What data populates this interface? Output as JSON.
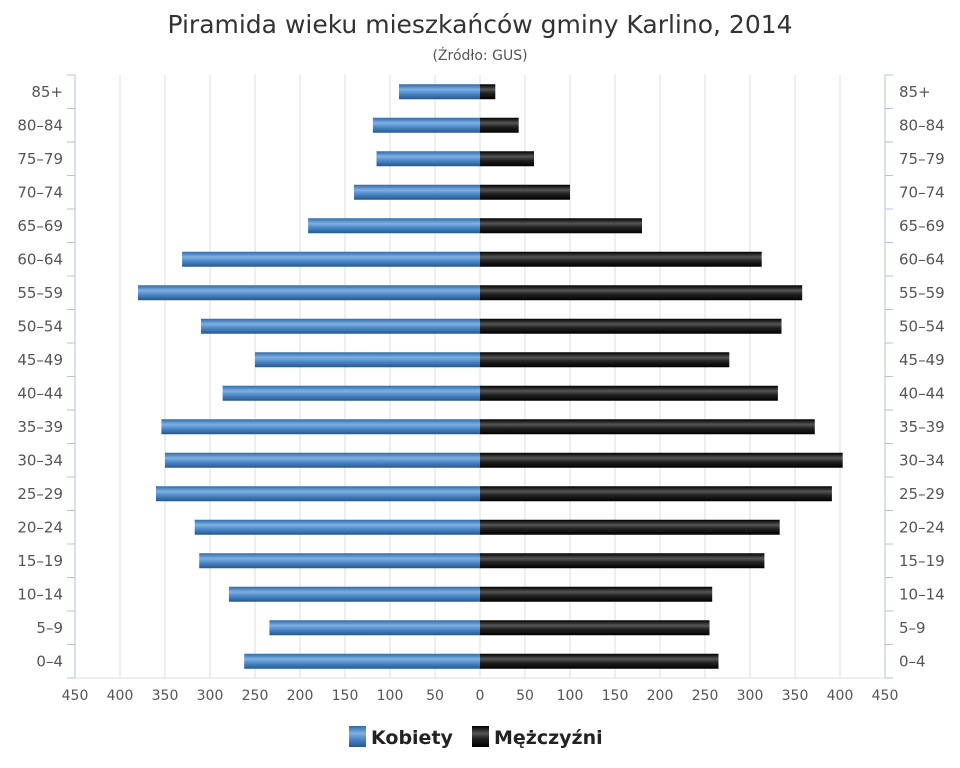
{
  "colors": {
    "kobiety": "#4a86c5",
    "mezczyzni": "#1a1a1a",
    "grid": "#dddddd",
    "axis": "#b0c4d8"
  },
  "chart_data": {
    "type": "bar",
    "orientation": "horizontal",
    "title": "Piramida wieku mieszkańców gminy Karlino, 2014",
    "subtitle": "(Źródło: GUS)",
    "categories": [
      "85+",
      "80–84",
      "75–79",
      "70–74",
      "65–69",
      "60–64",
      "55–59",
      "50–54",
      "45–49",
      "40–44",
      "35–39",
      "30–34",
      "25–29",
      "20–24",
      "15–19",
      "10–14",
      "5–9",
      "0–4"
    ],
    "series": [
      {
        "name": "Kobiety",
        "direction": "left",
        "values": [
          90,
          119,
          115,
          140,
          191,
          331,
          380,
          310,
          250,
          286,
          354,
          350,
          360,
          317,
          312,
          279,
          234,
          262
        ]
      },
      {
        "name": "Mężczyźni",
        "direction": "right",
        "values": [
          17,
          43,
          60,
          100,
          180,
          313,
          358,
          335,
          277,
          331,
          372,
          403,
          391,
          333,
          316,
          258,
          255,
          265
        ]
      }
    ],
    "xlim": [
      -450,
      450
    ],
    "xticks": [
      "450",
      "400",
      "350",
      "300",
      "250",
      "200",
      "150",
      "100",
      "50",
      "0",
      "50",
      "100",
      "150",
      "200",
      "250",
      "300",
      "350",
      "400",
      "450"
    ],
    "grid": true,
    "legend": "bottom-center"
  }
}
